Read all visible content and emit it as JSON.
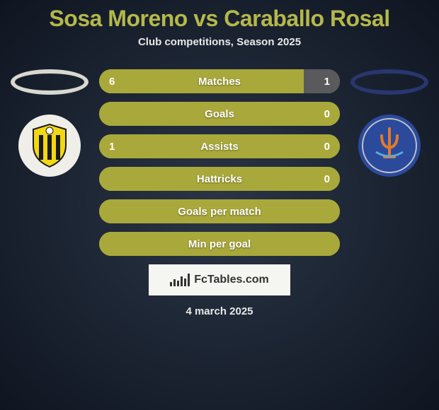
{
  "title": "Sosa Moreno vs Caraballo Rosal",
  "subtitle": "Club competitions, Season 2025",
  "date": "4 march 2025",
  "logo_text": "FcTables.com",
  "left": {
    "ellipse_border": "#d8d8d0",
    "badge_bg": "#f0eee8",
    "badge_stripe1": "#f2d713",
    "badge_stripe2": "#1a1a1a"
  },
  "right": {
    "ellipse_border": "#29366f",
    "badge_bg": "#2b4a9c",
    "badge_accent": "#e07b2a"
  },
  "bars": [
    {
      "label": "Matches",
      "left": "6",
      "right": "1",
      "left_pct": 85,
      "right_pct": 15,
      "left_color": "#a9a83b",
      "right_color": "#5a5a5c",
      "show_left": true,
      "show_right": true
    },
    {
      "label": "Goals",
      "left": "",
      "right": "0",
      "left_pct": 100,
      "right_pct": 0,
      "left_color": "#a9a83b",
      "right_color": "#5a5a5c",
      "show_left": false,
      "show_right": true
    },
    {
      "label": "Assists",
      "left": "1",
      "right": "0",
      "left_pct": 100,
      "right_pct": 0,
      "left_color": "#a9a83b",
      "right_color": "#5a5a5c",
      "show_left": true,
      "show_right": true
    },
    {
      "label": "Hattricks",
      "left": "",
      "right": "0",
      "left_pct": 100,
      "right_pct": 0,
      "left_color": "#a9a83b",
      "right_color": "#5a5a5c",
      "show_left": false,
      "show_right": true
    },
    {
      "label": "Goals per match",
      "left": "",
      "right": "",
      "left_pct": 100,
      "right_pct": 0,
      "left_color": "#a9a83b",
      "right_color": "#5a5a5c",
      "show_left": false,
      "show_right": false
    },
    {
      "label": "Min per goal",
      "left": "",
      "right": "",
      "left_pct": 100,
      "right_pct": 0,
      "left_color": "#a9a83b",
      "right_color": "#5a5a5c",
      "show_left": false,
      "show_right": false
    }
  ]
}
